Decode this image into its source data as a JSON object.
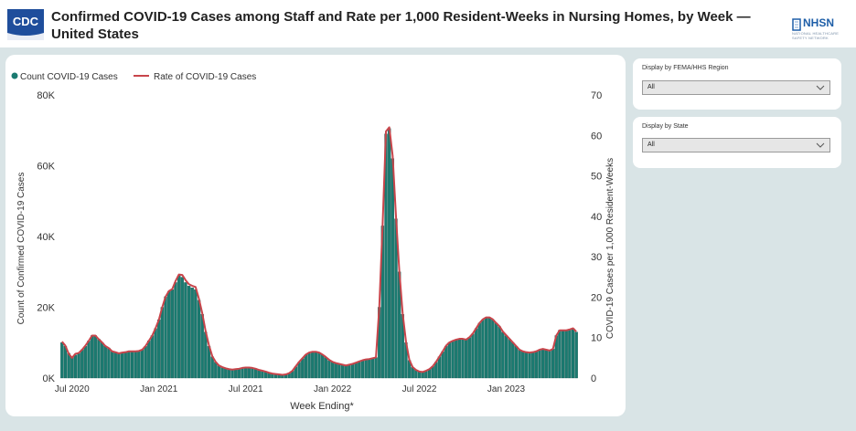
{
  "header": {
    "title": "Confirmed COVID-19 Cases among Staff and Rate per 1,000 Resident-Weeks in Nursing Homes, by Week — United States",
    "cdc_logo_text": "CDC",
    "nhsn_logo_text": "NHSN",
    "nhsn_logo_subtext": "NATIONAL HEALTHCARE SAFETY NETWORK"
  },
  "filters": [
    {
      "label": "Display by FEMA/HHS Region",
      "value": "All"
    },
    {
      "label": "Display by State",
      "value": "All"
    }
  ],
  "colors": {
    "bar": "#1a7a70",
    "bar_outline": "#0f4f48",
    "line": "#c8454b",
    "panel": "#d9e4e6"
  },
  "chart_data": {
    "type": "bar",
    "title": "",
    "xlabel": "Week Ending*",
    "ylabel": "Count of Confirmed COVID-19 Cases",
    "y2label": "COVID-19 Cases per 1,000 Resident-Weeks",
    "ylim": [
      0,
      80000
    ],
    "y2lim": [
      0,
      70
    ],
    "yticks": [
      "0K",
      "20K",
      "40K",
      "60K",
      "80K"
    ],
    "y2ticks": [
      "0",
      "10",
      "20",
      "30",
      "40",
      "50",
      "60",
      "70"
    ],
    "xticks": [
      {
        "label": "Jul 2020",
        "week": 3
      },
      {
        "label": "Jan 2021",
        "week": 29
      },
      {
        "label": "Jul 2021",
        "week": 55
      },
      {
        "label": "Jan 2022",
        "week": 81
      },
      {
        "label": "Jul 2022",
        "week": 107
      },
      {
        "label": "Jan 2023",
        "week": 133
      }
    ],
    "legend": [
      {
        "name": "Count COVID-19 Cases",
        "marker": "dot"
      },
      {
        "name": "Rate of COVID-19 Cases",
        "marker": "line"
      }
    ],
    "legend_position": "top-left",
    "grid": false,
    "series": [
      {
        "name": "Count COVID-19 Cases",
        "axis": "left",
        "values": [
          10000,
          9000,
          7000,
          6000,
          6500,
          7000,
          8000,
          9000,
          10500,
          12000,
          12000,
          11000,
          10000,
          9000,
          8500,
          7500,
          7300,
          7000,
          7200,
          7300,
          7500,
          7500,
          7500,
          7600,
          8000,
          9000,
          10500,
          12000,
          14000,
          16500,
          20000,
          23000,
          24500,
          25000,
          27000,
          29000,
          28500,
          27000,
          26000,
          25500,
          25000,
          22000,
          18000,
          13000,
          9000,
          6000,
          4500,
          3500,
          3000,
          2700,
          2500,
          2400,
          2500,
          2600,
          2800,
          2900,
          2900,
          2800,
          2600,
          2300,
          2000,
          1800,
          1500,
          1300,
          1100,
          1000,
          900,
          1000,
          1300,
          2000,
          3200,
          4500,
          5500,
          6500,
          7000,
          7300,
          7300,
          7100,
          6500,
          5800,
          5000,
          4500,
          4200,
          4000,
          3800,
          3500,
          3800,
          4000,
          4300,
          4600,
          5000,
          5200,
          5300,
          5500,
          5800,
          20000,
          43000,
          69000,
          70500,
          62000,
          45000,
          30000,
          18000,
          10000,
          5000,
          3000,
          2300,
          1800,
          1700,
          2000,
          2500,
          3300,
          4500,
          6000,
          7500,
          9000,
          10000,
          10500,
          10800,
          11000,
          11000,
          10800,
          11500,
          12500,
          14000,
          15500,
          16500,
          17000,
          17000,
          16500,
          15500,
          14500,
          13000,
          12000,
          11000,
          10000,
          9000,
          8000,
          7500,
          7300,
          7200,
          7300,
          7500,
          8000,
          8200,
          8000,
          7700,
          8200,
          12000,
          13500,
          13500,
          13500,
          13800,
          14000,
          13000
        ]
      },
      {
        "name": "Rate of COVID-19 Cases",
        "axis": "right",
        "values": [
          9,
          8,
          6,
          5,
          6,
          6.2,
          7,
          8,
          9.2,
          10.5,
          10.5,
          9.6,
          8.8,
          7.9,
          7.4,
          6.6,
          6.4,
          6.1,
          6.3,
          6.4,
          6.6,
          6.6,
          6.6,
          6.7,
          7,
          7.9,
          9.2,
          10.5,
          12.3,
          14.4,
          17.5,
          20.1,
          21.5,
          22,
          24,
          25.6,
          25.5,
          24.2,
          23.2,
          22.8,
          22.5,
          19.6,
          16,
          11.6,
          8.1,
          5.4,
          4,
          3.1,
          2.7,
          2.4,
          2.2,
          2.1,
          2.2,
          2.3,
          2.5,
          2.6,
          2.6,
          2.5,
          2.3,
          2,
          1.8,
          1.6,
          1.3,
          1.1,
          1,
          0.9,
          0.8,
          0.9,
          1.2,
          1.8,
          2.9,
          4,
          4.9,
          5.8,
          6.3,
          6.5,
          6.5,
          6.3,
          5.8,
          5.2,
          4.5,
          4,
          3.7,
          3.5,
          3.3,
          3.1,
          3.3,
          3.5,
          3.8,
          4.1,
          4.4,
          4.6,
          4.7,
          4.9,
          5.1,
          17.5,
          38,
          61,
          62,
          55,
          40,
          26.5,
          16,
          9,
          4.5,
          2.7,
          2,
          1.6,
          1.5,
          1.8,
          2.2,
          2.9,
          4,
          5.3,
          6.6,
          8,
          8.8,
          9.2,
          9.5,
          9.7,
          9.7,
          9.5,
          10.1,
          11,
          12.3,
          13.6,
          14.5,
          15,
          15,
          14.5,
          13.6,
          12.8,
          11.5,
          10.6,
          9.7,
          8.8,
          7.9,
          7,
          6.6,
          6.4,
          6.3,
          6.4,
          6.6,
          7,
          7.2,
          7,
          6.8,
          7.2,
          10.5,
          11.8,
          11.8,
          11.8,
          12,
          12.3,
          11.5
        ]
      }
    ]
  }
}
